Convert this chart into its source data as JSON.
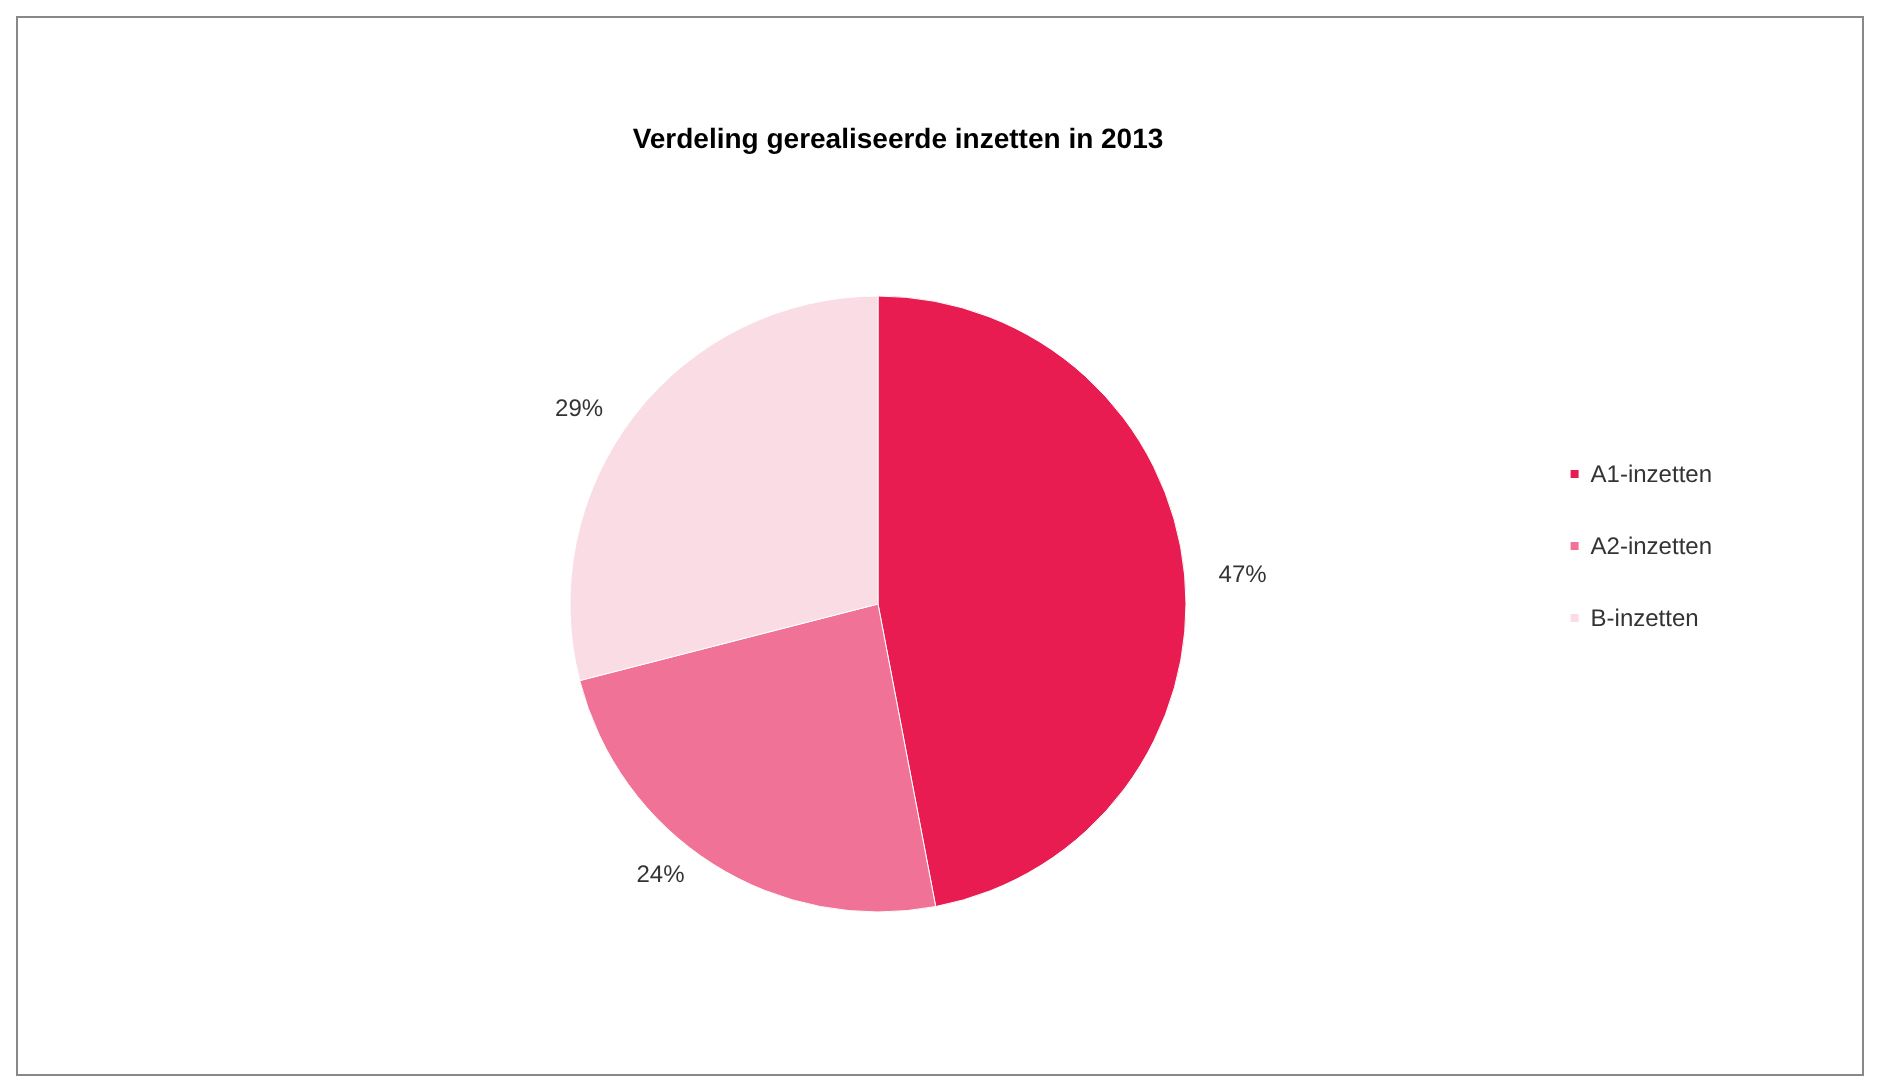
{
  "chart_data": {
    "type": "pie",
    "title": "Verdeling gerealiseerde inzetten in 2013",
    "categories": [
      "A1-inzetten",
      "A2-inzetten",
      "B-inzetten"
    ],
    "values": [
      47,
      24,
      29
    ],
    "value_labels": [
      "47%",
      "24%",
      "29%"
    ],
    "colors": [
      "#e81c50",
      "#f07397",
      "#fadce4"
    ],
    "legend": "right"
  }
}
